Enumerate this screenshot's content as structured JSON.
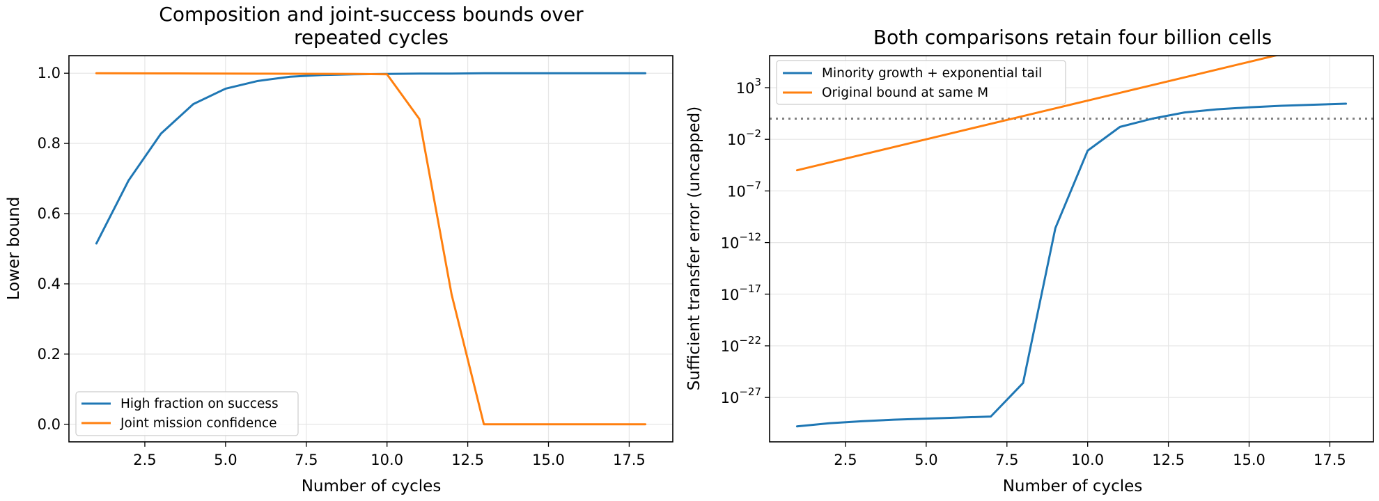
{
  "colors": {
    "series1": "#1f77b4",
    "series2": "#ff7f0e",
    "reference": "#808080",
    "grid": "#e6e6e6"
  },
  "chart_data": [
    {
      "type": "line",
      "title_lines": [
        "Composition and joint-success bounds over",
        "repeated cycles"
      ],
      "xlabel": "Number of cycles",
      "ylabel": "Lower bound",
      "xlim": [
        0.15,
        18.85
      ],
      "ylim": [
        -0.05,
        1.05
      ],
      "yscale": "linear",
      "xticks": [
        2.5,
        5.0,
        7.5,
        10.0,
        12.5,
        15.0,
        17.5
      ],
      "xtick_labels": [
        "2.5",
        "5.0",
        "7.5",
        "10.0",
        "12.5",
        "15.0",
        "17.5"
      ],
      "yticks": [
        0.0,
        0.2,
        0.4,
        0.6,
        0.8,
        1.0
      ],
      "ytick_labels": [
        "0.0",
        "0.2",
        "0.4",
        "0.6",
        "0.8",
        "1.0"
      ],
      "grid": true,
      "legend_position": "lower-left",
      "series": [
        {
          "name": "High fraction on success",
          "color": "#1f77b4",
          "x": [
            1,
            2,
            3,
            4,
            5,
            6,
            7,
            8,
            9,
            10,
            11,
            12,
            13,
            14,
            15,
            16,
            17,
            18
          ],
          "y": [
            0.515,
            0.695,
            0.828,
            0.912,
            0.956,
            0.978,
            0.99,
            0.995,
            0.997,
            0.998,
            0.999,
            0.999,
            1.0,
            1.0,
            1.0,
            1.0,
            1.0,
            1.0
          ]
        },
        {
          "name": "Joint mission confidence",
          "color": "#ff7f0e",
          "x": [
            1,
            2,
            3,
            4,
            5,
            6,
            7,
            8,
            9,
            10,
            11,
            12,
            13,
            14,
            15,
            16,
            17,
            18
          ],
          "y": [
            1.0,
            0.9998,
            0.9995,
            0.9992,
            0.999,
            0.9987,
            0.9985,
            0.9983,
            0.998,
            0.997,
            0.87,
            0.37,
            0.0,
            0.0,
            0.0,
            0.0,
            0.0,
            0.0
          ]
        }
      ]
    },
    {
      "type": "line",
      "title": "Both comparisons retain four billion cells",
      "xlabel": "Number of cycles",
      "ylabel": "Sufficient transfer error (uncapped)",
      "xlim": [
        0.15,
        18.85
      ],
      "ylim_log10": [
        -31.3,
        6.1
      ],
      "yscale": "log",
      "xticks": [
        2.5,
        5.0,
        7.5,
        10.0,
        12.5,
        15.0,
        17.5
      ],
      "xtick_labels": [
        "2.5",
        "5.0",
        "7.5",
        "10.0",
        "12.5",
        "15.0",
        "17.5"
      ],
      "yticks_log10": [
        -27,
        -22,
        -17,
        -12,
        -7,
        -2,
        3
      ],
      "ytick_labels": [
        "10",
        "10",
        "10",
        "10",
        "10",
        "10",
        "10"
      ],
      "ytick_exponents": [
        "−27",
        "−22",
        "−17",
        "−12",
        "−7",
        "−2",
        "3"
      ],
      "reference_line": {
        "y": 1,
        "style": "dotted",
        "color": "#808080"
      },
      "grid": true,
      "legend_position": "top-left",
      "series": [
        {
          "name": "Minority growth + exponential tail",
          "color": "#1f77b4",
          "x": [
            1,
            2,
            3,
            4,
            5,
            6,
            7,
            8,
            9,
            10,
            11,
            12,
            13,
            14,
            15,
            16,
            17,
            18
          ],
          "log10_y": [
            -29.8,
            -29.5,
            -29.3,
            -29.15,
            -29.05,
            -28.95,
            -28.85,
            -25.6,
            -10.6,
            -3.1,
            -0.8,
            0.0,
            0.6,
            0.9,
            1.1,
            1.25,
            1.35,
            1.45
          ]
        },
        {
          "name": "Original bound at same M",
          "color": "#ff7f0e",
          "x": [
            1,
            2,
            3,
            4,
            5,
            6,
            7,
            8,
            9,
            10,
            11,
            12,
            13,
            14,
            15,
            16,
            17,
            18
          ],
          "log10_y": [
            -5.0,
            -4.25,
            -3.5,
            -2.75,
            -2.0,
            -1.25,
            -0.5,
            0.25,
            1.0,
            1.75,
            2.5,
            3.25,
            4.0,
            4.75,
            5.5,
            6.25,
            7.0,
            7.75
          ]
        }
      ]
    }
  ]
}
